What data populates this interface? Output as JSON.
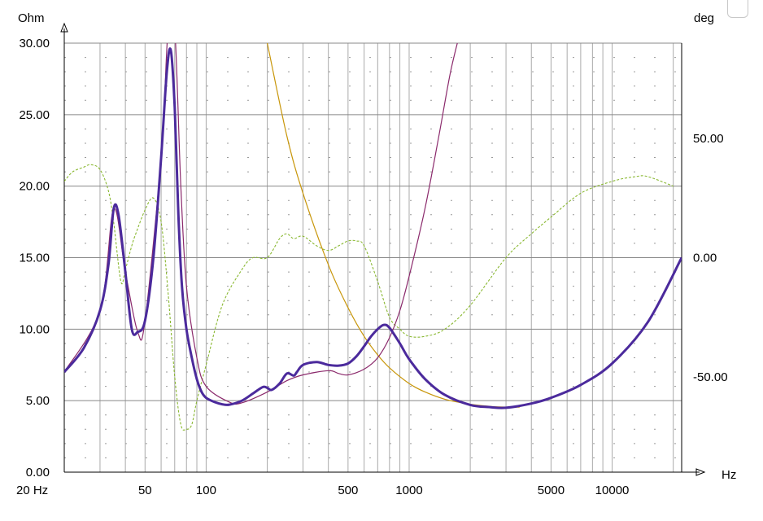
{
  "chart_data": {
    "type": "line",
    "left_axis": {
      "unit_label": "Ohm",
      "ylim": [
        0,
        30
      ],
      "ticks": [
        "0.00",
        "5.00",
        "10.00",
        "15.00",
        "20.00",
        "25.00",
        "30.00"
      ]
    },
    "right_axis": {
      "unit_label": "deg",
      "ylim": [
        -90,
        90
      ],
      "ticks": [
        "-50.00",
        "0.00",
        "50.00"
      ]
    },
    "x_axis": {
      "unit_label": "Hz",
      "scale": "log",
      "xlim": [
        20,
        22000
      ],
      "ticks": [
        "20 Hz",
        "50",
        "100",
        "500",
        "1000",
        "5000",
        "10000"
      ]
    },
    "grid": true,
    "colors": {
      "impedance": "#4b2a9c",
      "impedance_thin": "#8b2a6c",
      "yellow": "#c8960a",
      "phase_dashed": "#8ab832",
      "grid_major": "#888888",
      "grid_minor": "#aaaaaa"
    },
    "series": [
      {
        "axis": "left",
        "style": "thick",
        "x": [
          20,
          25,
          30,
          33,
          35,
          37,
          40,
          43,
          46,
          50,
          55,
          60,
          64,
          67,
          70,
          73,
          76,
          80,
          85,
          90,
          95,
          100,
          110,
          120,
          130,
          150,
          170,
          190,
          200,
          210,
          230,
          250,
          270,
          280,
          300,
          350,
          400,
          450,
          500,
          550,
          600,
          650,
          700,
          750,
          800,
          900,
          1000,
          1200,
          1500,
          2000,
          2500,
          3000,
          4000,
          5000,
          7000,
          10000,
          15000,
          22000
        ],
        "y": [
          7.0,
          8.7,
          11.3,
          14.5,
          18.4,
          18.0,
          14.0,
          10.0,
          9.8,
          10.6,
          15.0,
          22.0,
          28.0,
          29.5,
          25.5,
          18.0,
          13.0,
          10.0,
          8.0,
          6.5,
          5.6,
          5.2,
          4.9,
          4.75,
          4.72,
          5.0,
          5.5,
          5.95,
          5.9,
          5.75,
          6.2,
          6.9,
          6.75,
          7.0,
          7.5,
          7.7,
          7.5,
          7.45,
          7.6,
          8.1,
          8.8,
          9.5,
          10.0,
          10.3,
          10.1,
          9.0,
          7.9,
          6.5,
          5.4,
          4.7,
          4.55,
          4.5,
          4.8,
          5.2,
          6.1,
          7.6,
          10.5,
          15.0
        ]
      },
      {
        "axis": "left",
        "style": "thin",
        "x": [
          20,
          30,
          35,
          40,
          46,
          50,
          60,
          65,
          70,
          75,
          80,
          90,
          100,
          130,
          150,
          200,
          250,
          300,
          400,
          450,
          500,
          600,
          700,
          800,
          900,
          1000,
          1200,
          1400,
          1600,
          1800
        ],
        "y": [
          7.0,
          11.3,
          18.4,
          14.0,
          9.8,
          10.6,
          22.0,
          31.0,
          31.0,
          20.0,
          13.0,
          8.0,
          6.0,
          4.9,
          4.85,
          5.6,
          6.4,
          6.8,
          7.1,
          6.9,
          6.8,
          7.2,
          8.0,
          9.4,
          11.3,
          13.7,
          18.5,
          23.5,
          28.0,
          31.0
        ]
      },
      {
        "axis": "left",
        "style": "yellow",
        "x": [
          200,
          250,
          300,
          400,
          500,
          600,
          700,
          800,
          1000,
          1200,
          1500,
          2000,
          2500,
          3000,
          3500
        ],
        "y": [
          30.0,
          23.5,
          19.5,
          14.5,
          11.5,
          9.5,
          8.2,
          7.3,
          6.2,
          5.6,
          5.1,
          4.75,
          4.6,
          4.55,
          4.55
        ]
      },
      {
        "axis": "right",
        "style": "dashed",
        "x": [
          20,
          22,
          25,
          27,
          30,
          33,
          35,
          38,
          40,
          43,
          45,
          50,
          55,
          60,
          65,
          70,
          75,
          80,
          85,
          90,
          100,
          120,
          150,
          170,
          200,
          230,
          250,
          270,
          300,
          350,
          400,
          450,
          500,
          550,
          600,
          700,
          800,
          900,
          1000,
          1200,
          1500,
          2000,
          3000,
          4000,
          5000,
          7000,
          10000,
          13000,
          15000,
          20000
        ],
        "y": [
          32,
          36,
          38,
          39,
          37,
          28,
          15,
          -10,
          -5,
          5,
          10,
          20,
          25,
          15,
          -15,
          -50,
          -70,
          -72,
          -70,
          -60,
          -45,
          -20,
          -5,
          0,
          0,
          8,
          10,
          8,
          9,
          5,
          3,
          5,
          7,
          7,
          5,
          -10,
          -25,
          -30,
          -33,
          -33,
          -30,
          -20,
          0,
          10,
          17,
          27,
          32,
          34,
          34,
          30
        ]
      }
    ]
  }
}
